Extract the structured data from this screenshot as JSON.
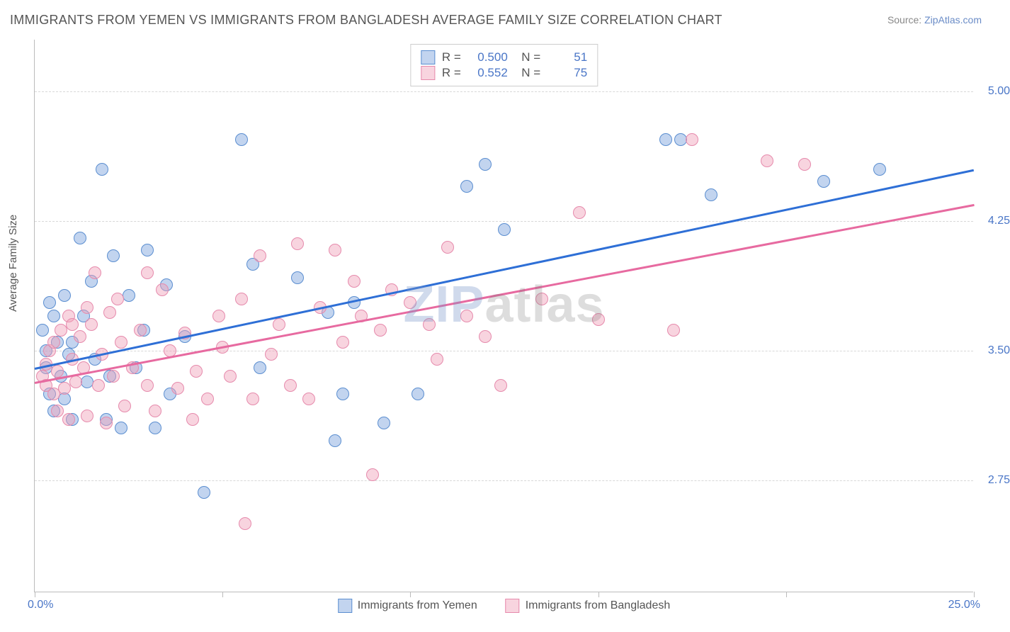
{
  "title": "IMMIGRANTS FROM YEMEN VS IMMIGRANTS FROM BANGLADESH AVERAGE FAMILY SIZE CORRELATION CHART",
  "source_label": "Source: ",
  "source_site": "ZipAtlas.com",
  "watermark_a": "ZIP",
  "watermark_b": "atlas",
  "yaxis_label": "Average Family Size",
  "chart": {
    "type": "scatter",
    "background_color": "#ffffff",
    "grid_color": "#d8d8d8",
    "axis_color": "#bbbbbb",
    "xlim": [
      0,
      25
    ],
    "ylim": [
      2.1,
      5.3
    ],
    "yticks": [
      2.75,
      3.5,
      4.25,
      5.0
    ],
    "ytick_labels": [
      "2.75",
      "3.50",
      "4.25",
      "5.00"
    ],
    "ytick_color": "#4a76c7",
    "xticks": [
      0,
      5,
      10,
      15,
      20,
      25
    ],
    "x_left_label": "0.0%",
    "x_right_label": "25.0%",
    "marker_radius": 9,
    "marker_opacity": 0.55,
    "line_width": 2.5
  },
  "series": [
    {
      "name": "Immigrants from Yemen",
      "color_fill": "rgba(120,160,220,0.45)",
      "color_stroke": "#5b8ed0",
      "trend_color": "#2e6fd6",
      "r": "0.500",
      "n": "51",
      "trend_start": [
        0,
        3.4
      ],
      "trend_end": [
        25,
        4.55
      ],
      "points": [
        [
          0.2,
          3.62
        ],
        [
          0.3,
          3.5
        ],
        [
          0.3,
          3.4
        ],
        [
          0.4,
          3.78
        ],
        [
          0.5,
          3.15
        ],
        [
          0.5,
          3.7
        ],
        [
          0.6,
          3.55
        ],
        [
          0.7,
          3.35
        ],
        [
          0.8,
          3.82
        ],
        [
          0.8,
          3.22
        ],
        [
          0.9,
          3.48
        ],
        [
          1.0,
          3.55
        ],
        [
          1.0,
          3.1
        ],
        [
          1.2,
          4.15
        ],
        [
          1.3,
          3.7
        ],
        [
          1.4,
          3.32
        ],
        [
          1.5,
          3.9
        ],
        [
          1.6,
          3.45
        ],
        [
          1.8,
          4.55
        ],
        [
          1.9,
          3.1
        ],
        [
          2.0,
          3.35
        ],
        [
          2.1,
          4.05
        ],
        [
          2.3,
          3.05
        ],
        [
          2.5,
          3.82
        ],
        [
          2.7,
          3.4
        ],
        [
          2.9,
          3.62
        ],
        [
          3.0,
          4.08
        ],
        [
          3.2,
          3.05
        ],
        [
          3.5,
          3.88
        ],
        [
          3.6,
          3.25
        ],
        [
          4.0,
          3.58
        ],
        [
          4.5,
          2.68
        ],
        [
          5.5,
          4.72
        ],
        [
          5.8,
          4.0
        ],
        [
          6.0,
          3.4
        ],
        [
          7.0,
          3.92
        ],
        [
          7.8,
          3.72
        ],
        [
          8.0,
          2.98
        ],
        [
          8.2,
          3.25
        ],
        [
          8.5,
          3.78
        ],
        [
          9.3,
          3.08
        ],
        [
          10.2,
          3.25
        ],
        [
          11.5,
          4.45
        ],
        [
          12.0,
          4.58
        ],
        [
          12.5,
          4.2
        ],
        [
          16.8,
          4.72
        ],
        [
          18.0,
          4.4
        ],
        [
          21.0,
          4.48
        ],
        [
          22.5,
          4.55
        ],
        [
          17.2,
          4.72
        ],
        [
          0.4,
          3.25
        ]
      ]
    },
    {
      "name": "Immigrants from Bangladesh",
      "color_fill": "rgba(240,160,185,0.45)",
      "color_stroke": "#e68aac",
      "trend_color": "#e76aa0",
      "r": "0.552",
      "n": "75",
      "trend_start": [
        0,
        3.32
      ],
      "trend_end": [
        25,
        4.35
      ],
      "points": [
        [
          0.2,
          3.35
        ],
        [
          0.3,
          3.42
        ],
        [
          0.3,
          3.3
        ],
        [
          0.4,
          3.5
        ],
        [
          0.5,
          3.25
        ],
        [
          0.5,
          3.55
        ],
        [
          0.6,
          3.38
        ],
        [
          0.7,
          3.62
        ],
        [
          0.8,
          3.28
        ],
        [
          0.9,
          3.7
        ],
        [
          1.0,
          3.45
        ],
        [
          1.1,
          3.32
        ],
        [
          1.2,
          3.58
        ],
        [
          1.3,
          3.4
        ],
        [
          1.4,
          3.12
        ],
        [
          1.5,
          3.65
        ],
        [
          1.6,
          3.95
        ],
        [
          1.7,
          3.3
        ],
        [
          1.8,
          3.48
        ],
        [
          1.9,
          3.08
        ],
        [
          2.0,
          3.72
        ],
        [
          2.1,
          3.35
        ],
        [
          2.3,
          3.55
        ],
        [
          2.4,
          3.18
        ],
        [
          2.6,
          3.4
        ],
        [
          2.8,
          3.62
        ],
        [
          3.0,
          3.3
        ],
        [
          3.2,
          3.15
        ],
        [
          3.4,
          3.85
        ],
        [
          3.6,
          3.5
        ],
        [
          3.8,
          3.28
        ],
        [
          4.0,
          3.6
        ],
        [
          4.3,
          3.38
        ],
        [
          4.6,
          3.22
        ],
        [
          4.9,
          3.7
        ],
        [
          5.0,
          3.52
        ],
        [
          5.2,
          3.35
        ],
        [
          5.6,
          2.5
        ],
        [
          5.8,
          3.22
        ],
        [
          6.0,
          4.05
        ],
        [
          6.3,
          3.48
        ],
        [
          6.5,
          3.65
        ],
        [
          6.8,
          3.3
        ],
        [
          7.0,
          4.12
        ],
        [
          7.3,
          3.22
        ],
        [
          7.6,
          3.75
        ],
        [
          8.0,
          4.08
        ],
        [
          8.2,
          3.55
        ],
        [
          8.7,
          3.7
        ],
        [
          9.0,
          2.78
        ],
        [
          9.2,
          3.62
        ],
        [
          9.5,
          3.85
        ],
        [
          10.0,
          3.78
        ],
        [
          10.5,
          3.65
        ],
        [
          10.7,
          3.45
        ],
        [
          11.0,
          4.1
        ],
        [
          11.5,
          3.7
        ],
        [
          12.0,
          3.58
        ],
        [
          12.4,
          3.3
        ],
        [
          13.5,
          3.8
        ],
        [
          14.5,
          4.3
        ],
        [
          15.0,
          3.68
        ],
        [
          17.0,
          3.62
        ],
        [
          17.5,
          4.72
        ],
        [
          19.5,
          4.6
        ],
        [
          20.5,
          4.58
        ],
        [
          3.0,
          3.95
        ],
        [
          4.2,
          3.1
        ],
        [
          5.5,
          3.8
        ],
        [
          8.5,
          3.9
        ],
        [
          1.0,
          3.65
        ],
        [
          2.2,
          3.8
        ],
        [
          0.6,
          3.15
        ],
        [
          1.4,
          3.75
        ],
        [
          0.9,
          3.1
        ]
      ]
    }
  ],
  "legend_top": {
    "r_label": "R =",
    "n_label": "N ="
  },
  "legend_bottom": [
    "Immigrants from Yemen",
    "Immigrants from Bangladesh"
  ]
}
